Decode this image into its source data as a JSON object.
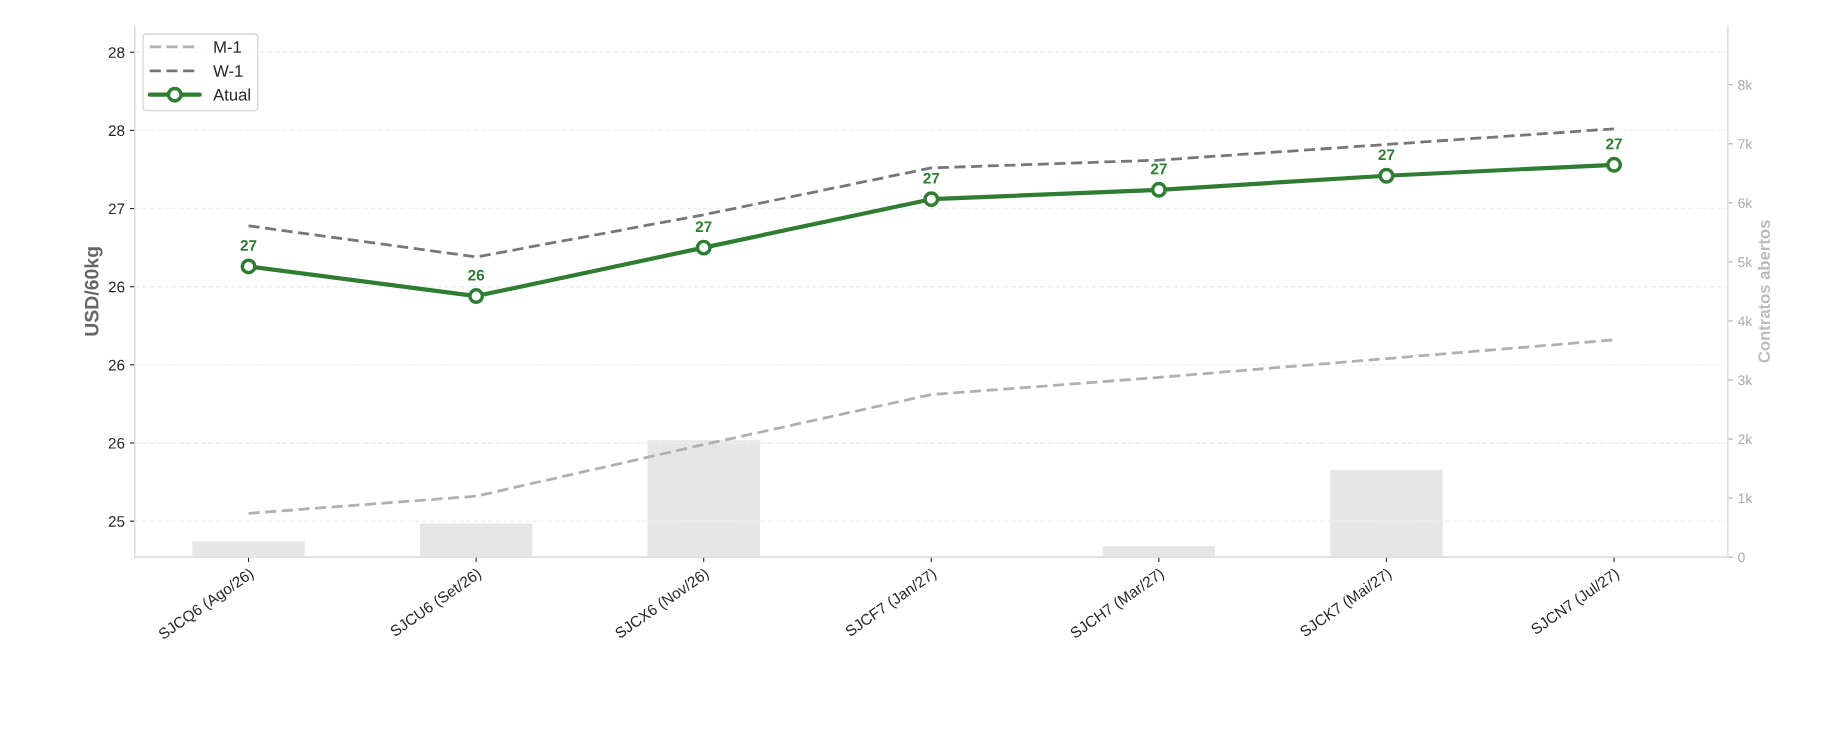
{
  "chart_data": {
    "type": "line",
    "ylabel": "USD/60kg",
    "y2label": "Contratos abertos",
    "categories": [
      "SJCQ6 (Ago/26)",
      "SJCU6 (Set/26)",
      "SJCX6 (Nov/26)",
      "SJCF7 (Jan/27)",
      "SJCH7 (Mar/27)",
      "SJCK7 (Mai/27)",
      "SJCN7 (Jul/27)"
    ],
    "series": [
      {
        "type": "bar",
        "axis": "y2",
        "color": "#e6e6e6",
        "values": [
          280,
          580,
          1990,
          null,
          200,
          1490,
          null
        ]
      },
      {
        "name": "M-1",
        "color": "#b0b0b0",
        "line_style": "dashed",
        "marker": "none",
        "values": [
          25.05,
          25.16,
          25.49,
          25.81,
          25.92,
          26.04,
          26.16
        ]
      },
      {
        "name": "W-1",
        "color": "#777777",
        "line_style": "dashed",
        "marker": "none",
        "values": [
          26.89,
          26.69,
          26.96,
          27.26,
          27.31,
          27.41,
          27.51
        ]
      },
      {
        "name": "Atual",
        "color": "#2e7d32",
        "line_style": "solid",
        "marker": "circle",
        "values": [
          26.63,
          26.44,
          26.75,
          27.06,
          27.12,
          27.21,
          27.28
        ],
        "value_labels": [
          "27",
          "26",
          "27",
          "27",
          "27",
          "27",
          "27"
        ]
      }
    ],
    "ylim": [
      24.77,
      28.17
    ],
    "yticks": [
      25,
      {
        "value": 25.5,
        "label": "26"
      },
      26,
      {
        "value": 26.5,
        "label": "26"
      },
      27,
      {
        "value": 27.5,
        "label": "28"
      },
      28
    ],
    "y2lim": [
      0,
      9000
    ],
    "y2ticks": [
      0,
      {
        "value": 1000,
        "label": "1k"
      },
      {
        "value": 2000,
        "label": "2k"
      },
      {
        "value": 3000,
        "label": "3k"
      },
      {
        "value": 4000,
        "label": "4k"
      },
      {
        "value": 5000,
        "label": "5k"
      },
      {
        "value": 6000,
        "label": "6k"
      },
      {
        "value": 7000,
        "label": "7k"
      },
      {
        "value": 8000,
        "label": "8k"
      }
    ],
    "grid": "y",
    "legend": "top left"
  }
}
